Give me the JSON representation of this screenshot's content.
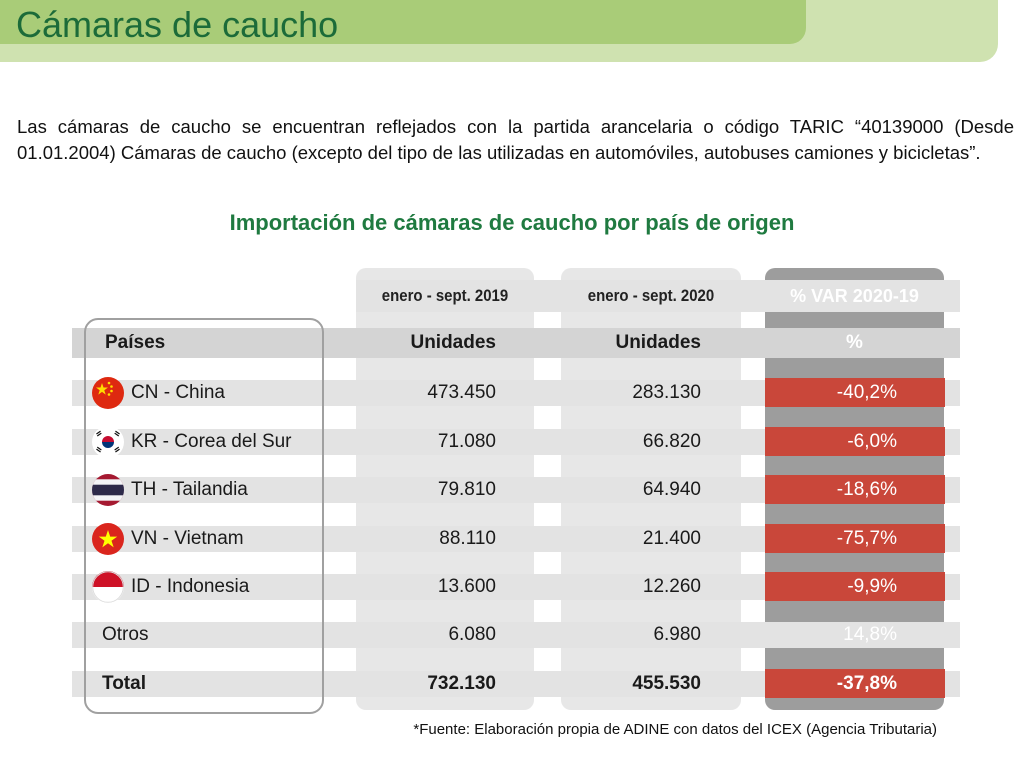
{
  "header": {
    "title": "Cámaras de caucho"
  },
  "intro": "Las cámaras de caucho se encuentran reflejados con la partida arancelaria o código TARIC “40139000 (Desde 01.01.2004) Cámaras de caucho (excepto del tipo de las utilizadas en automóviles, autobuses camiones y bicicletas”.",
  "table": {
    "title": "Importación de cámaras de caucho por país de origen",
    "period_headers": [
      "enero - sept. 2019",
      "enero - sept. 2020",
      "% VAR 2020-19"
    ],
    "column_headers": [
      "Países",
      "Unidades",
      "Unidades",
      "%"
    ],
    "rows": [
      {
        "country": "CN - China",
        "flag": "china-flag-icon",
        "v2019": "473.450",
        "v2020": "283.130",
        "var": "-40,2%"
      },
      {
        "country": "KR - Corea del Sur",
        "flag": "south-korea-flag-icon",
        "v2019": "71.080",
        "v2020": "66.820",
        "var": "-6,0%"
      },
      {
        "country": "TH - Tailandia",
        "flag": "thailand-flag-icon",
        "v2019": "79.810",
        "v2020": "64.940",
        "var": "-18,6%"
      },
      {
        "country": "VN - Vietnam",
        "flag": "vietnam-flag-icon",
        "v2019": "88.110",
        "v2020": "21.400",
        "var": "-75,7%"
      },
      {
        "country": "ID - Indonesia",
        "flag": "indonesia-flag-icon",
        "v2019": "13.600",
        "v2020": "12.260",
        "var": "-9,9%"
      },
      {
        "country": "Otros",
        "v2019": "6.080",
        "v2020": "6.980",
        "var": "14,8%"
      }
    ],
    "total": {
      "label": "Total",
      "v2019": "732.130",
      "v2020": "455.530",
      "var": "-37,8%"
    }
  },
  "source": "*Fuente: Elaboración propia de ADINE con datos del ICEX (Agencia Tributaria)",
  "colors": {
    "title_green": "#1c6b39",
    "banner_light": "#cfe2b0",
    "banner_dark": "#a9cc78",
    "negative_red": "#c9473a",
    "var_column_grey": "#9d9d9d"
  }
}
